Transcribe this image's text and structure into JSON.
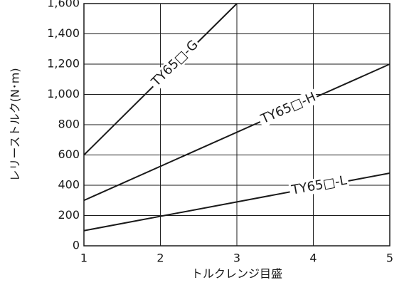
{
  "chart_data": {
    "type": "line",
    "xlabel": "トルクレンジ目盛",
    "ylabel": "レリーストルク(N･m)",
    "series": [
      {
        "name": "TY65□-G",
        "color": "#1a1a1a",
        "x": [
          1,
          3
        ],
        "values": [
          600,
          1600
        ]
      },
      {
        "name": "TY65□-H",
        "color": "#1a1a1a",
        "x": [
          1,
          5
        ],
        "values": [
          300,
          1200
        ]
      },
      {
        "name": "TY65□-L",
        "color": "#1a1a1a",
        "x": [
          1,
          5
        ],
        "values": [
          100,
          480
        ]
      }
    ],
    "xlim": [
      1,
      5
    ],
    "xticks": [
      1,
      2,
      3,
      4,
      5
    ],
    "ylim": [
      0,
      1600
    ],
    "yticks": [
      0,
      200,
      400,
      600,
      800,
      {
        "value": 1000,
        "label": "1,000"
      },
      {
        "value": 1200,
        "label": "1,200"
      },
      {
        "value": 1400,
        "label": "1,400"
      },
      {
        "value": 1600,
        "label": "1,600"
      }
    ],
    "grid": true
  }
}
